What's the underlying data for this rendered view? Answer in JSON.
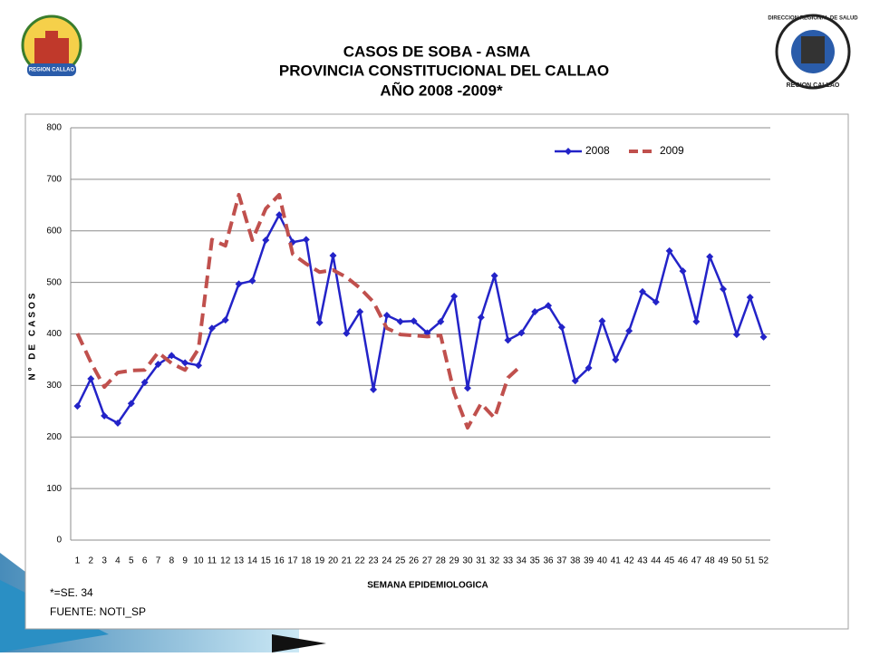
{
  "chart_data": {
    "type": "line",
    "title": [
      "CASOS DE SOBA -  ASMA",
      "PROVINCIA CONSTITUCIONAL DEL CALLAO",
      "AÑO 2008 -2009*"
    ],
    "x_label": "SEMANA EPIDEMIOLOGICA",
    "y_label": "Nº DE CASOS",
    "notes": [
      "*=SE. 34",
      "FUENTE: NOTI_SP"
    ],
    "logos": [
      "REGION CALLAO",
      "DIRECCION REGIONAL DE SALUD",
      "REGION CALLAO"
    ],
    "x": [
      1,
      2,
      3,
      4,
      5,
      6,
      7,
      8,
      9,
      10,
      11,
      12,
      13,
      14,
      15,
      16,
      17,
      18,
      19,
      20,
      21,
      22,
      23,
      24,
      25,
      26,
      27,
      28,
      29,
      30,
      31,
      32,
      33,
      34,
      35,
      36,
      37,
      38,
      39,
      40,
      41,
      42,
      43,
      44,
      45,
      46,
      47,
      48,
      49,
      50,
      51,
      52
    ],
    "xlim": [
      0.5,
      52.5
    ],
    "ylim": [
      0,
      800
    ],
    "yticks": [
      0,
      100,
      200,
      300,
      400,
      500,
      600,
      700,
      800
    ],
    "grid": true,
    "legend": "top-right",
    "series": [
      {
        "name": "2008",
        "color": "#2323c8",
        "marker": "diamond",
        "dashed": false,
        "values": [
          260,
          313,
          241,
          227,
          265,
          306,
          341,
          358,
          344,
          339,
          411,
          427,
          497,
          503,
          582,
          631,
          578,
          583,
          422,
          552,
          401,
          443,
          292,
          436,
          424,
          425,
          402,
          424,
          473,
          295,
          432,
          513,
          388,
          402,
          443,
          455,
          413,
          309,
          334,
          425,
          350,
          406,
          482,
          462,
          561,
          522,
          424,
          550,
          487,
          399,
          471,
          394
        ]
      },
      {
        "name": "2009",
        "color": "#c0504d",
        "marker": null,
        "dashed": true,
        "values": [
          401,
          345,
          297,
          325,
          329,
          330,
          364,
          343,
          330,
          371,
          583,
          571,
          670,
          582,
          643,
          670,
          555,
          536,
          520,
          524,
          510,
          489,
          462,
          411,
          399,
          397,
          395,
          397,
          286,
          218,
          265,
          237,
          315,
          339,
          null,
          null,
          null,
          null,
          null,
          null,
          null,
          null,
          null,
          null,
          null,
          null,
          null,
          null,
          null,
          null,
          null,
          null
        ]
      }
    ]
  }
}
